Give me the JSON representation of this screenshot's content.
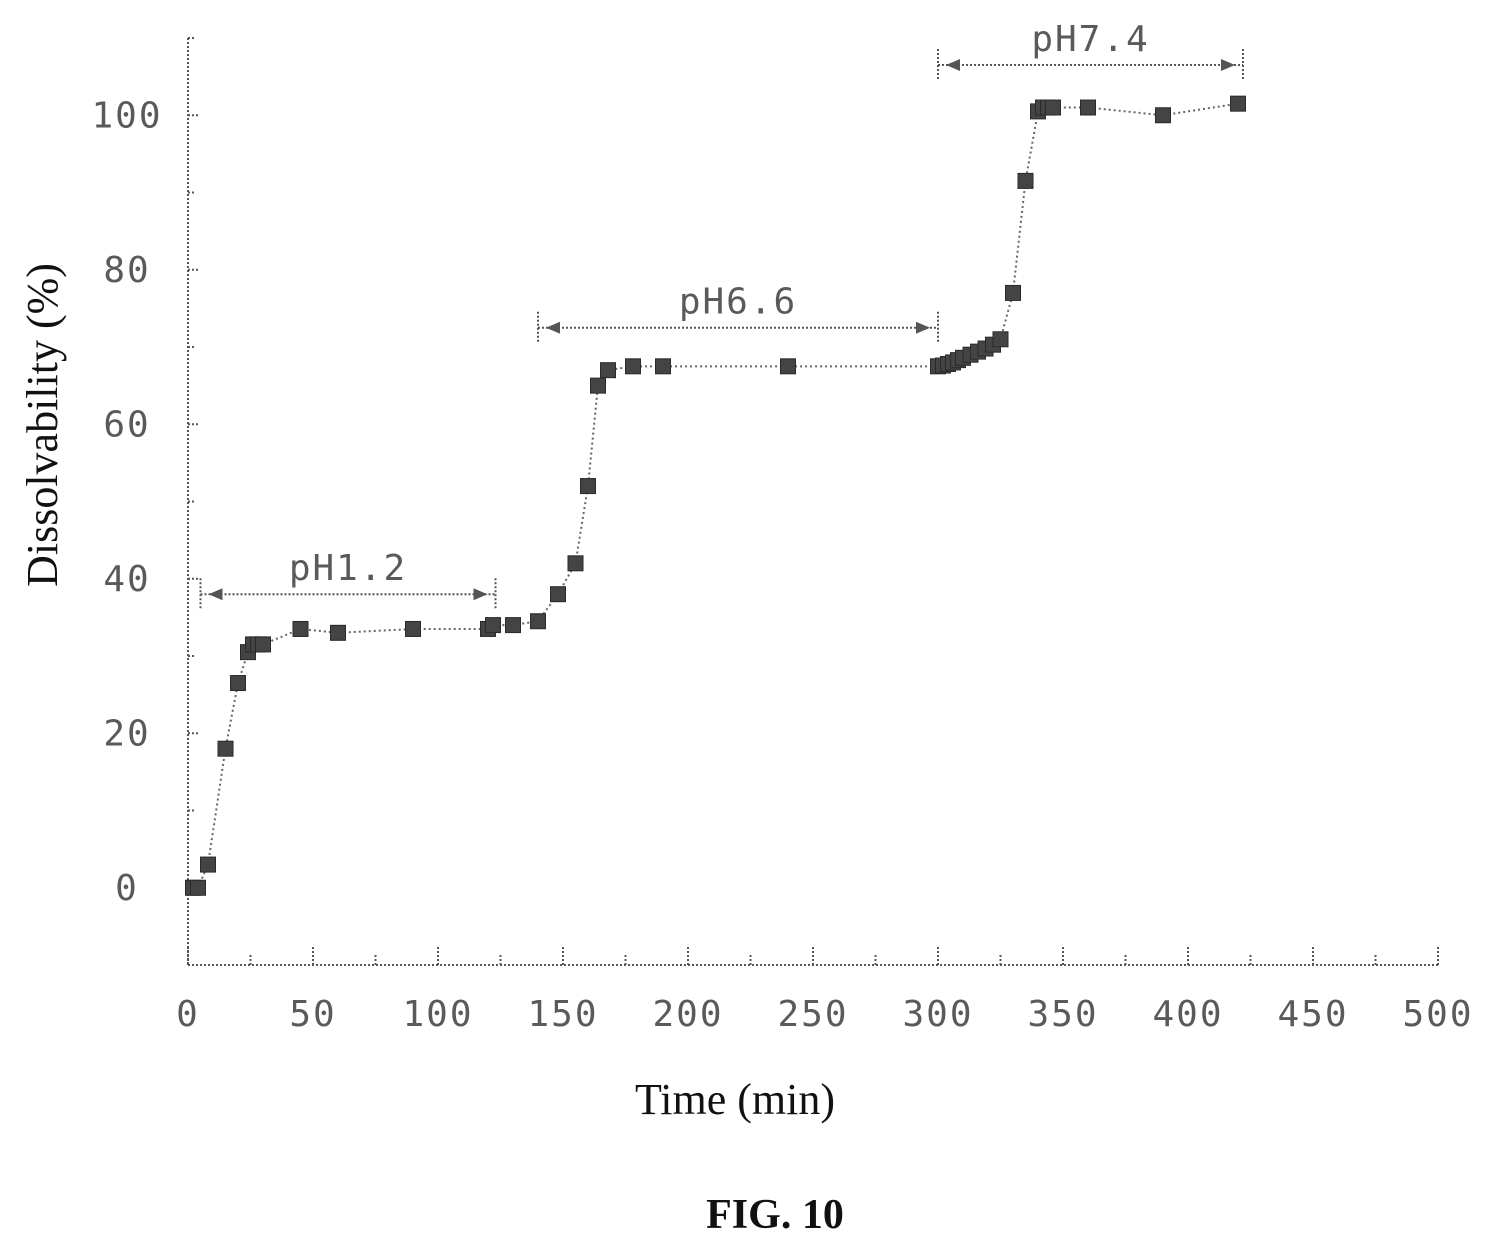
{
  "figure": {
    "caption": "FIG. 10"
  },
  "chart_data": {
    "type": "line",
    "xlabel": "Time (min)",
    "ylabel": "Dissolvability (%)",
    "xlim": [
      0,
      500
    ],
    "ylim": [
      -10,
      110
    ],
    "xticks": [
      0,
      50,
      100,
      150,
      200,
      250,
      300,
      350,
      400,
      450,
      500
    ],
    "xtick_labels": [
      "0",
      "50",
      "100",
      "150",
      "200",
      "250",
      "300",
      "350",
      "400",
      "450",
      "500"
    ],
    "yticks": [
      0,
      20,
      40,
      60,
      80,
      100
    ],
    "ytick_labels": [
      "0",
      "20",
      "40",
      "60",
      "80",
      "100"
    ],
    "grid": false,
    "legend": "none",
    "series": [
      {
        "x": [
          2,
          4,
          8,
          15,
          20,
          24,
          26,
          28,
          30,
          45,
          60,
          90,
          120,
          122,
          130,
          140,
          148,
          155,
          160,
          164,
          168,
          178,
          190,
          240,
          300,
          302,
          304,
          306,
          308,
          310,
          313,
          316,
          319,
          322,
          325,
          330,
          335,
          340,
          342,
          344,
          346,
          360,
          390,
          420
        ],
        "y": [
          0,
          0,
          3,
          18,
          26.5,
          30.5,
          31.5,
          31.5,
          31.5,
          33.5,
          33,
          33.5,
          33.5,
          34,
          34,
          34.5,
          38,
          42,
          52,
          65,
          67,
          67.5,
          67.5,
          67.5,
          67.5,
          67.6,
          67.8,
          68,
          68.3,
          68.6,
          69,
          69.4,
          69.8,
          70.3,
          71,
          77,
          91.5,
          100.5,
          101,
          101,
          101,
          101,
          100,
          101.5
        ]
      }
    ],
    "annotations": [
      {
        "label": "pH1.2",
        "x_start": 5,
        "x_end": 123,
        "y": 38
      },
      {
        "label": "pH6.6",
        "x_start": 140,
        "x_end": 300,
        "y": 72.5
      },
      {
        "label": "pH7.4",
        "x_start": 300,
        "x_end": 422,
        "y": 106.5
      }
    ],
    "colors": {
      "marker": "#444444",
      "line": "#666666"
    }
  }
}
